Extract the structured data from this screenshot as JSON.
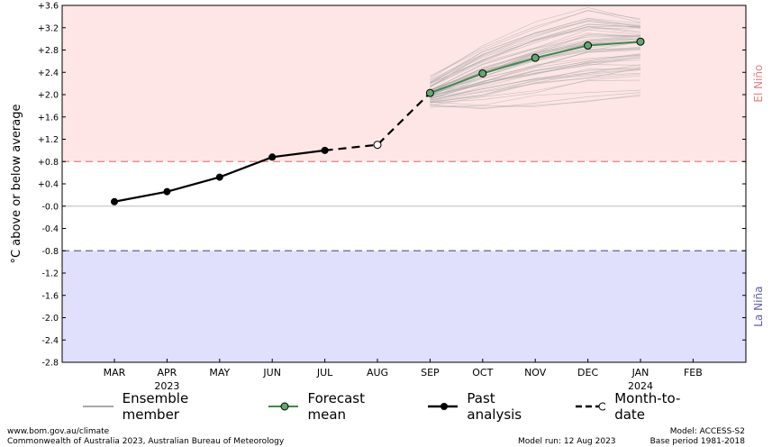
{
  "chart_data": {
    "type": "line",
    "ylabel": "°C above or below average",
    "ylim": [
      -2.8,
      3.6
    ],
    "yticks": [
      "+3.6",
      "+3.2",
      "+2.8",
      "+2.4",
      "+2.0",
      "+1.6",
      "+1.2",
      "+0.8",
      "+0.4",
      "-0.0",
      "-0.4",
      "-0.8",
      "-1.2",
      "-1.6",
      "-2.0",
      "-2.4",
      "-2.8"
    ],
    "months": [
      "MAR",
      "APR",
      "MAY",
      "JUN",
      "JUL",
      "AUG",
      "SEP",
      "OCT",
      "NOV",
      "DEC",
      "JAN",
      "FEB"
    ],
    "year_labels": [
      {
        "month": "APR",
        "label": "2023"
      },
      {
        "month": "JAN",
        "label": "2024"
      }
    ],
    "thresholds": {
      "el_nino": 0.8,
      "la_nina": -0.8
    },
    "regions": {
      "el_nino": "El Niño",
      "la_nina": "La Niña"
    },
    "colors": {
      "el_nino_bg": "#ffe6e6",
      "la_nina_bg": "#e0e0fc",
      "el_nino_line": "#e08080",
      "la_nina_line": "#6060a8",
      "forecast": "#3d8a4f",
      "forecast_marker": "#5fa870",
      "ensemble": "#a8a8a8"
    },
    "series": [
      {
        "name": "Past analysis",
        "x": [
          "MAR",
          "APR",
          "MAY",
          "JUN",
          "JUL"
        ],
        "values": [
          0.08,
          0.26,
          0.52,
          0.88,
          1.0
        ]
      },
      {
        "name": "Month-to-date",
        "x": [
          "JUL",
          "AUG",
          "SEP"
        ],
        "values": [
          1.0,
          1.1,
          2.03
        ]
      },
      {
        "name": "Forecast mean",
        "x": [
          "SEP",
          "OCT",
          "NOV",
          "DEC",
          "JAN"
        ],
        "values": [
          2.03,
          2.38,
          2.66,
          2.88,
          2.95
        ]
      },
      {
        "name": "Ensemble member",
        "x": [
          "SEP",
          "OCT",
          "NOV",
          "DEC",
          "JAN"
        ],
        "spread": {
          "low": [
            1.78,
            1.75,
            1.82,
            1.9,
            1.97
          ],
          "high": [
            2.3,
            2.9,
            3.25,
            3.55,
            3.38
          ]
        }
      }
    ]
  },
  "legend": {
    "ensemble": "Ensemble member",
    "forecast": "Forecast mean",
    "past": "Past analysis",
    "mtd": "Month-to-date"
  },
  "footer": {
    "url": "www.bom.gov.au/climate",
    "copyright": "Commonwealth of Australia 2023, Australian Bureau of Meteorology",
    "model_run": "Model run: 12 Aug 2023",
    "model": "Model: ACCESS-S2",
    "base_period": "Base period 1981-2018"
  }
}
